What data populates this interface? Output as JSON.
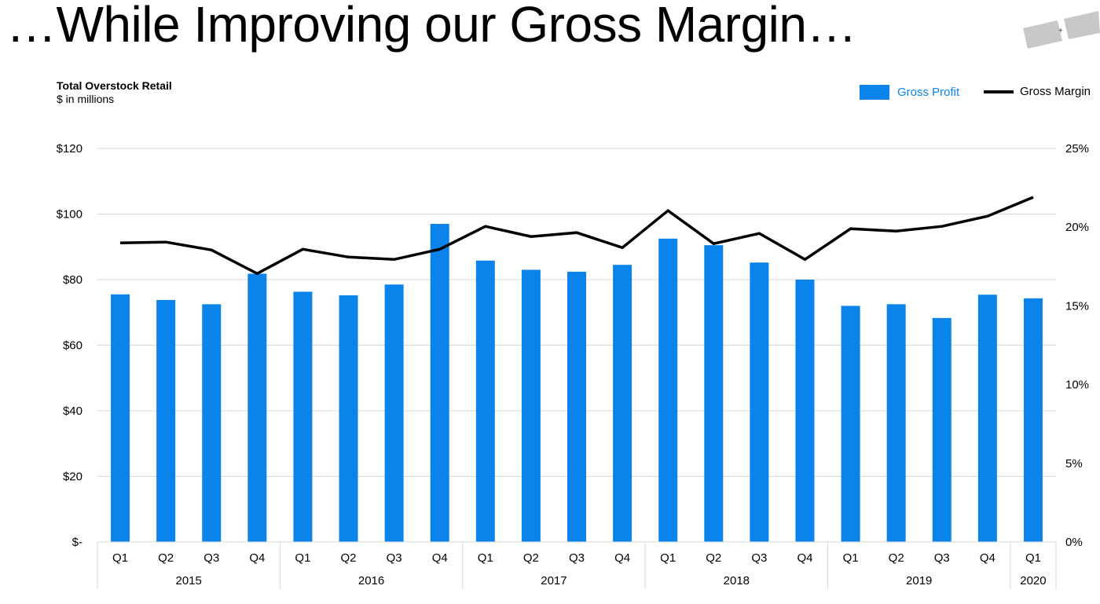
{
  "title": "…While Improving our Gross Margin…",
  "subtitle": {
    "line1": "Total Overstock Retail",
    "line2": "$ in millions"
  },
  "colors": {
    "bar": "#0A84EA",
    "line": "#000000",
    "grid": "#D9D9D9",
    "legend_bar_text": "#0A84EA"
  },
  "legend": {
    "bar_label": "Gross Profit",
    "line_label": "Gross Margin"
  },
  "chart_data": {
    "type": "bar+line",
    "categories": [
      "Q1",
      "Q2",
      "Q3",
      "Q4",
      "Q1",
      "Q2",
      "Q3",
      "Q4",
      "Q1",
      "Q2",
      "Q3",
      "Q4",
      "Q1",
      "Q2",
      "Q3",
      "Q4",
      "Q1",
      "Q2",
      "Q3",
      "Q4",
      "Q1"
    ],
    "groups": [
      {
        "label": "2015",
        "count": 4
      },
      {
        "label": "2016",
        "count": 4
      },
      {
        "label": "2017",
        "count": 4
      },
      {
        "label": "2018",
        "count": 4
      },
      {
        "label": "2019",
        "count": 4
      },
      {
        "label": "2020",
        "count": 1
      }
    ],
    "series": [
      {
        "name": "Gross Profit",
        "type": "bar",
        "axis": "left",
        "values": [
          75.5,
          73.8,
          72.5,
          81.8,
          76.3,
          75.2,
          78.5,
          97.0,
          85.8,
          83.0,
          82.4,
          84.5,
          92.5,
          90.5,
          85.2,
          80.0,
          72.0,
          72.5,
          68.3,
          75.4,
          74.3
        ]
      },
      {
        "name": "Gross Margin",
        "type": "line",
        "axis": "right",
        "values": [
          19.0,
          19.05,
          18.55,
          17.05,
          18.6,
          18.1,
          17.95,
          18.6,
          20.05,
          19.4,
          19.65,
          18.7,
          21.05,
          18.95,
          19.6,
          17.95,
          19.9,
          19.75,
          20.05,
          20.7,
          21.9
        ]
      }
    ],
    "left_axis": {
      "min": 0,
      "max": 120,
      "ticks": [
        0,
        20,
        40,
        60,
        80,
        100,
        120
      ],
      "tick_labels": [
        "$-",
        "$20",
        "$40",
        "$60",
        "$80",
        "$100",
        "$120"
      ]
    },
    "right_axis": {
      "min": 0,
      "max": 25,
      "ticks": [
        0,
        5,
        10,
        15,
        20,
        25
      ],
      "tick_labels": [
        "0%",
        "5%",
        "10%",
        "15%",
        "20%",
        "25%"
      ]
    },
    "grid": true,
    "legend_position": "top-right"
  }
}
